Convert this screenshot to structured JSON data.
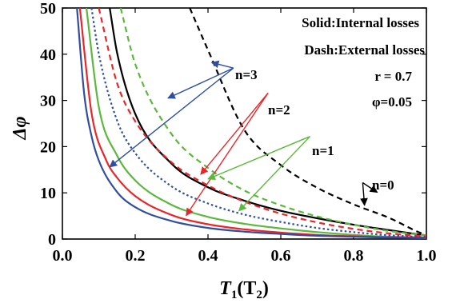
{
  "chart_data": {
    "type": "line",
    "xlabel": "T₁(T₂)",
    "xlabel_main": "T",
    "xlabel_sub1": "1",
    "xlabel_mid": "(T",
    "xlabel_sub2": "2",
    "xlabel_end": ")",
    "ylabel": "Δφ",
    "xlim": [
      0,
      1
    ],
    "ylim": [
      0,
      50
    ],
    "x_ticks": [
      "0.0",
      "0.2",
      "0.4",
      "0.6",
      "0.8",
      "1.0"
    ],
    "y_ticks": [
      "0",
      "10",
      "20",
      "30",
      "40",
      "50"
    ],
    "grid": false,
    "annotations": {
      "style_solid": "Solid:Internal losses",
      "style_dash": "Dash:External losses",
      "param_r": "r = 0.7",
      "param_phi": "φ=0.05"
    },
    "n_labels": [
      "n=3",
      "n=2",
      "n=1",
      "n=0"
    ],
    "series": [
      {
        "label": "n=0",
        "color": "#000000",
        "style": "solid",
        "x": [
          0.13,
          0.15,
          0.2,
          0.3,
          0.4,
          0.5,
          0.6,
          0.7,
          0.8,
          0.9,
          0.97,
          1.0
        ],
        "y": [
          50,
          40.4,
          27.1,
          16.3,
          11.2,
          8.3,
          6.1,
          4.5,
          3.1,
          1.9,
          1.1,
          0.8
        ]
      },
      {
        "label": "n=0",
        "color": "#000000",
        "style": "dash",
        "x": [
          0.35,
          0.4,
          0.5,
          0.6,
          0.7,
          0.8,
          0.9,
          0.97,
          1.0
        ],
        "y": [
          50,
          40.9,
          23.6,
          16.0,
          11.1,
          7.5,
          4.5,
          1.8,
          0.8
        ]
      },
      {
        "label": "n=1",
        "color": "#5cb83c",
        "style": "solid",
        "x": [
          0.066,
          0.1,
          0.15,
          0.2,
          0.3,
          0.4,
          0.5,
          0.6,
          0.7,
          0.8,
          0.9,
          1.0
        ],
        "y": [
          50,
          28.6,
          18.1,
          12.7,
          7.4,
          4.8,
          3.3,
          2.3,
          1.5,
          0.9,
          0.5,
          0.4
        ]
      },
      {
        "label": "n=1",
        "color": "#5cb83c",
        "style": "dash",
        "x": [
          0.16,
          0.2,
          0.3,
          0.4,
          0.5,
          0.6,
          0.7,
          0.8,
          0.9,
          1.0
        ],
        "y": [
          50,
          37.9,
          22.7,
          15.4,
          10.5,
          7.3,
          4.9,
          3.1,
          1.7,
          0.8
        ]
      },
      {
        "label": "n=2",
        "color": "#e8262a",
        "style": "solid",
        "x": [
          0.048,
          0.08,
          0.12,
          0.15,
          0.2,
          0.3,
          0.4,
          0.5,
          0.6,
          0.7,
          0.8,
          0.9,
          1.0
        ],
        "y": [
          50,
          27.3,
          17.1,
          13.3,
          9.3,
          5.2,
          3.2,
          2.1,
          1.4,
          0.9,
          0.6,
          0.4,
          0.3
        ]
      },
      {
        "label": "n=2",
        "color": "#e8262a",
        "style": "dash",
        "x": [
          0.1,
          0.15,
          0.2,
          0.3,
          0.4,
          0.5,
          0.6,
          0.7,
          0.8,
          0.9,
          1.0
        ],
        "y": [
          50,
          33.8,
          25.5,
          16.6,
          11.6,
          8.1,
          5.5,
          3.6,
          2.2,
          1.2,
          0.6
        ]
      },
      {
        "label": "n=3",
        "color": "#2f4ea1",
        "style": "solid",
        "x": [
          0.04,
          0.06,
          0.08,
          0.1,
          0.15,
          0.2,
          0.3,
          0.4,
          0.5,
          0.6,
          0.7,
          0.8,
          0.9,
          1.0
        ],
        "y": [
          50,
          31.3,
          22.3,
          17.0,
          10.2,
          6.9,
          3.9,
          2.4,
          1.6,
          1.1,
          0.7,
          0.5,
          0.3,
          0.2
        ]
      },
      {
        "label": "n=3",
        "color": "#2f4ea1",
        "style": "dot",
        "x": [
          0.08,
          0.1,
          0.15,
          0.2,
          0.3,
          0.4,
          0.5,
          0.6,
          0.7,
          0.8,
          0.9,
          1.0
        ],
        "y": [
          50,
          40.1,
          25.7,
          18.6,
          11.4,
          7.7,
          5.3,
          3.7,
          2.4,
          1.5,
          0.8,
          0.4
        ]
      }
    ],
    "arrows": [
      {
        "color": "#2f4ea1",
        "from": [
          0.47,
          37
        ],
        "to": [
          0.29,
          30.5
        ]
      },
      {
        "color": "#2f4ea1",
        "from": [
          0.47,
          37
        ],
        "to": [
          0.13,
          15.6
        ]
      },
      {
        "color": "#2f4ea1",
        "from": [
          0.47,
          37
        ],
        "to": [
          0.41,
          38.2
        ]
      },
      {
        "color": "#e8262a",
        "from": [
          0.565,
          31.6
        ],
        "to": [
          0.38,
          14
        ]
      },
      {
        "color": "#e8262a",
        "from": [
          0.565,
          31.6
        ],
        "to": [
          0.34,
          5.1
        ]
      },
      {
        "color": "#5cb83c",
        "from": [
          0.68,
          22.2
        ],
        "to": [
          0.4,
          13
        ]
      },
      {
        "color": "#5cb83c",
        "from": [
          0.68,
          22.2
        ],
        "to": [
          0.485,
          6.1
        ]
      },
      {
        "color": "#000000",
        "from": [
          0.825,
          12.2
        ],
        "to": [
          0.865,
          10.1
        ]
      },
      {
        "color": "#000000",
        "from": [
          0.825,
          12.2
        ],
        "to": [
          0.83,
          7.3
        ]
      }
    ]
  }
}
